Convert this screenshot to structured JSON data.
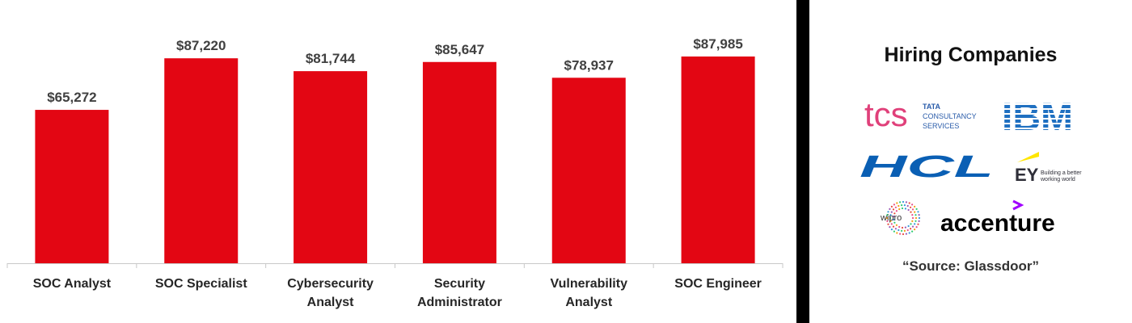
{
  "chart_data": {
    "type": "bar",
    "categories": [
      [
        "SOC Analyst"
      ],
      [
        "SOC Specialist"
      ],
      [
        "Cybersecurity",
        "Analyst"
      ],
      [
        "Security",
        "Administrator"
      ],
      [
        "Vulnerability",
        "Analyst"
      ],
      [
        "SOC Engineer"
      ]
    ],
    "values": [
      65272,
      87220,
      81744,
      85647,
      78937,
      87985
    ],
    "data_labels": [
      "$65,272",
      "$87,220",
      "$81,744",
      "$85,647",
      "$78,937",
      "$87,985"
    ],
    "ylim": [
      0,
      100000
    ],
    "bar_color": "#e30613",
    "grid": false,
    "legend": "none"
  },
  "sidebar": {
    "title": "Hiring Companies",
    "logos": {
      "tcs": {
        "mark": "tcs",
        "line1": "TATA",
        "line2": "CONSULTANCY",
        "line3": "SERVICES"
      },
      "ibm": {
        "text": "IBM"
      },
      "hcl": {
        "text": "HCL"
      },
      "ey": {
        "text": "EY",
        "tag1": "Building a better",
        "tag2": "working world"
      },
      "wipro": {
        "text": "wipro"
      },
      "accenture": {
        "text": "accenture"
      }
    },
    "source": "“Source: Glassdoor”"
  },
  "colors": {
    "accent": "#e30613",
    "divider": "#000000",
    "hcl_blue": "#0a5fb4",
    "ibm_blue": "#1f70c1",
    "ey_yellow": "#ffe600",
    "accenture_purple": "#a100ff"
  }
}
